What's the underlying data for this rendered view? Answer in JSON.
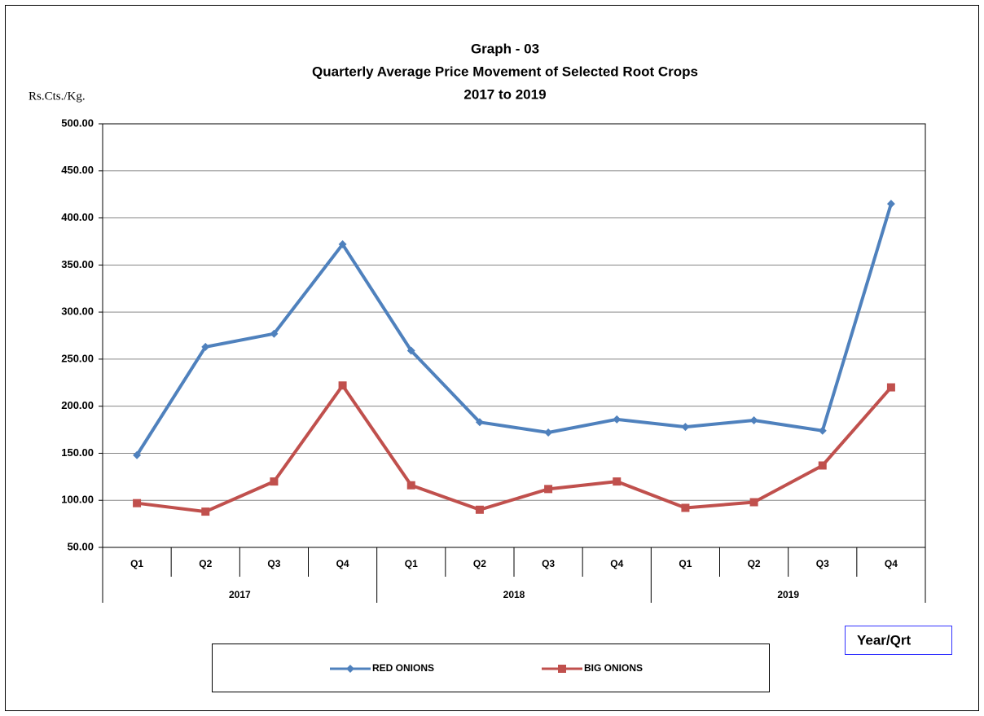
{
  "chart_data": {
    "type": "line",
    "title_lines": [
      "Graph - 03",
      "Quarterly Average Price Movement of Selected Root Crops",
      "2017 to 2019"
    ],
    "y_label": "Rs.Cts./Kg.",
    "x_label": "Year/Qrt",
    "categories": [
      "Q1",
      "Q2",
      "Q3",
      "Q4",
      "Q1",
      "Q2",
      "Q3",
      "Q4",
      "Q1",
      "Q2",
      "Q3",
      "Q4"
    ],
    "x_groups": [
      "2017",
      "2018",
      "2019"
    ],
    "series": [
      {
        "name": "RED ONIONS",
        "color": "#4f81bd",
        "marker": "diamond",
        "values": [
          148,
          263,
          277,
          372,
          259,
          183,
          172,
          186,
          178,
          185,
          174,
          415
        ]
      },
      {
        "name": "BIG ONIONS",
        "color": "#c0504d",
        "marker": "square",
        "values": [
          97,
          88,
          120,
          222,
          116,
          90,
          112,
          120,
          92,
          98,
          137,
          220
        ]
      }
    ],
    "ylim": [
      50,
      500
    ],
    "yticks": [
      {
        "value": 50,
        "label": "50.00"
      },
      {
        "value": 100,
        "label": "100.00"
      },
      {
        "value": 150,
        "label": "150.00"
      },
      {
        "value": 200,
        "label": "200.00"
      },
      {
        "value": 250,
        "label": "250.00"
      },
      {
        "value": 300,
        "label": "300.00"
      },
      {
        "value": 350,
        "label": "350.00"
      },
      {
        "value": 400,
        "label": "400.00"
      },
      {
        "value": 450,
        "label": "450.00"
      },
      {
        "value": 500,
        "label": "500.00"
      }
    ],
    "grid": true
  }
}
